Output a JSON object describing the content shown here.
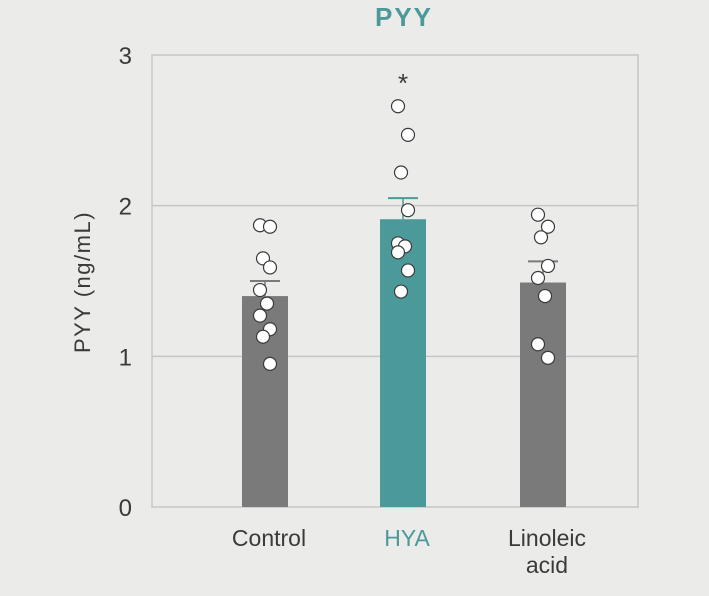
{
  "colors": {
    "background": "#ebebea",
    "plot_background": "#ebebea",
    "grid": "#c6c6c6",
    "axis": "#c6c6c6",
    "bar_default": "#7a7a7a",
    "bar_highlight": "#4b9a99",
    "title": "#4b9a99",
    "text": "#3a3a3a",
    "dot_fill": "#ffffff",
    "dot_stroke": "#3a3a3a"
  },
  "chart_data": {
    "type": "bar",
    "title": "PYY",
    "xlabel": "",
    "ylabel": "PYY (ng/mL)",
    "ylim": [
      0,
      3
    ],
    "yticks": [
      "0",
      "1",
      "2",
      "3"
    ],
    "grid": true,
    "categories": [
      {
        "label_lines": [
          "Control"
        ],
        "color": "#7a7a7a",
        "label_color": "#3a3a3a"
      },
      {
        "label_lines": [
          "HYA"
        ],
        "color": "#4b9a99",
        "label_color": "#4b9a99"
      },
      {
        "label_lines": [
          "Linoleic",
          "acid"
        ],
        "color": "#7a7a7a",
        "label_color": "#3a3a3a"
      }
    ],
    "values": [
      1.4,
      1.91,
      1.49
    ],
    "error_upper": [
      1.5,
      2.05,
      1.63
    ],
    "points": [
      [
        1.87,
        1.86,
        1.65,
        1.59,
        1.44,
        1.35,
        1.27,
        1.18,
        1.13,
        0.95
      ],
      [
        2.66,
        2.47,
        2.22,
        1.97,
        1.75,
        1.73,
        1.69,
        1.57,
        1.43
      ],
      [
        1.94,
        1.86,
        1.79,
        1.6,
        1.52,
        1.4,
        1.08,
        0.99
      ]
    ],
    "significance": [
      "",
      "*",
      ""
    ]
  }
}
